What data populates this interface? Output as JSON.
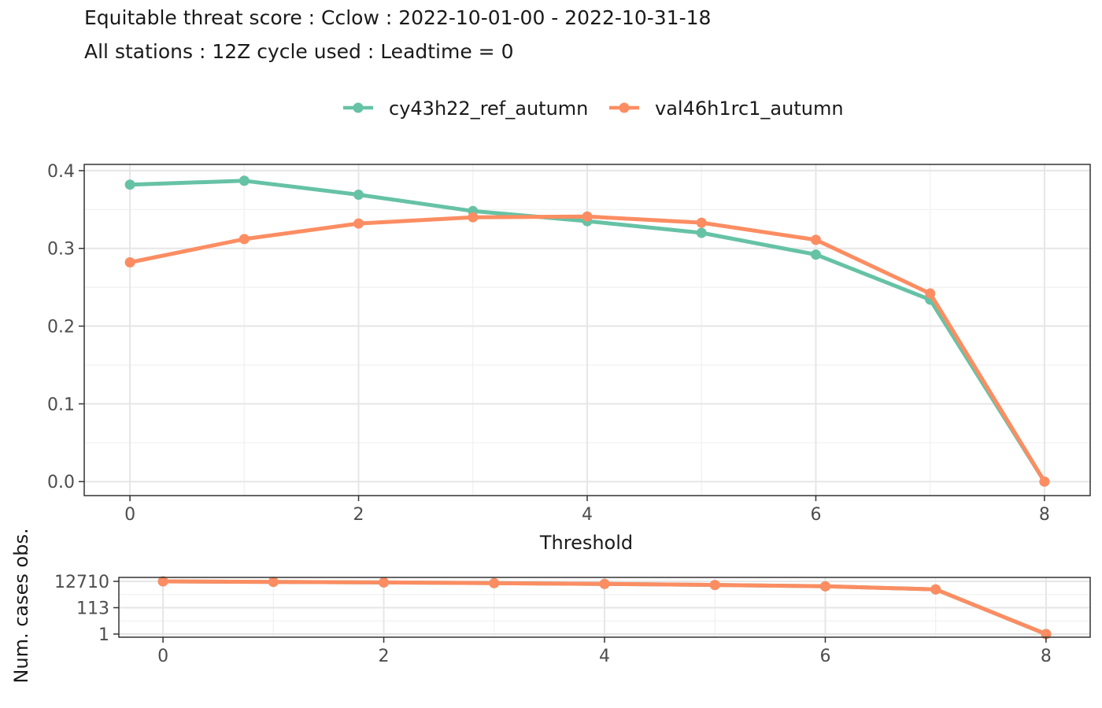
{
  "titles": {
    "line1": "Equitable threat score : Cclow : 2022-10-01-00 - 2022-10-31-18",
    "line2": "All stations : 12Z cycle used : Leadtime = 0"
  },
  "colors": {
    "cy43h22_ref_autumn": "#66C2A5",
    "val46h1rc1_autumn": "#FC8D62"
  },
  "chart_data": [
    {
      "type": "line",
      "xlabel": "Threshold",
      "ylabel": "",
      "x": [
        0,
        1,
        2,
        3,
        4,
        5,
        6,
        7,
        8
      ],
      "xticks": [
        0,
        2,
        4,
        6,
        8
      ],
      "xlim": [
        -0.4,
        8.4
      ],
      "ylim": [
        -0.018,
        0.408
      ],
      "yticks": [
        0.0,
        0.1,
        0.2,
        0.3,
        0.4
      ],
      "ytick_labels": [
        "0.0",
        "0.1",
        "0.2",
        "0.3",
        "0.4"
      ],
      "grid": true,
      "legend": "top",
      "series": [
        {
          "name": "cy43h22_ref_autumn",
          "values": [
            0.382,
            0.387,
            0.369,
            0.348,
            0.335,
            0.32,
            0.292,
            0.234,
            0.0
          ]
        },
        {
          "name": "val46h1rc1_autumn",
          "values": [
            0.282,
            0.312,
            0.332,
            0.34,
            0.341,
            0.333,
            0.311,
            0.242,
            0.0
          ]
        }
      ]
    },
    {
      "type": "line",
      "xlabel": "",
      "ylabel": "Num. cases obs.",
      "y_scale": "log",
      "x": [
        0,
        1,
        2,
        3,
        4,
        5,
        6,
        7,
        8
      ],
      "xticks": [
        0,
        2,
        4,
        6,
        8
      ],
      "xlim": [
        -0.4,
        8.4
      ],
      "yticks": [
        1,
        113,
        12710
      ],
      "ytick_labels": [
        "1",
        "113",
        "12710"
      ],
      "grid": true,
      "series": [
        {
          "name": "cy43h22_ref_autumn",
          "values": [
            12710,
            11500,
            10500,
            9200,
            8000,
            6600,
            5200,
            3000,
            1
          ]
        },
        {
          "name": "val46h1rc1_autumn",
          "values": [
            12710,
            11500,
            10500,
            9200,
            8000,
            6600,
            5200,
            3000,
            1
          ]
        }
      ]
    }
  ]
}
